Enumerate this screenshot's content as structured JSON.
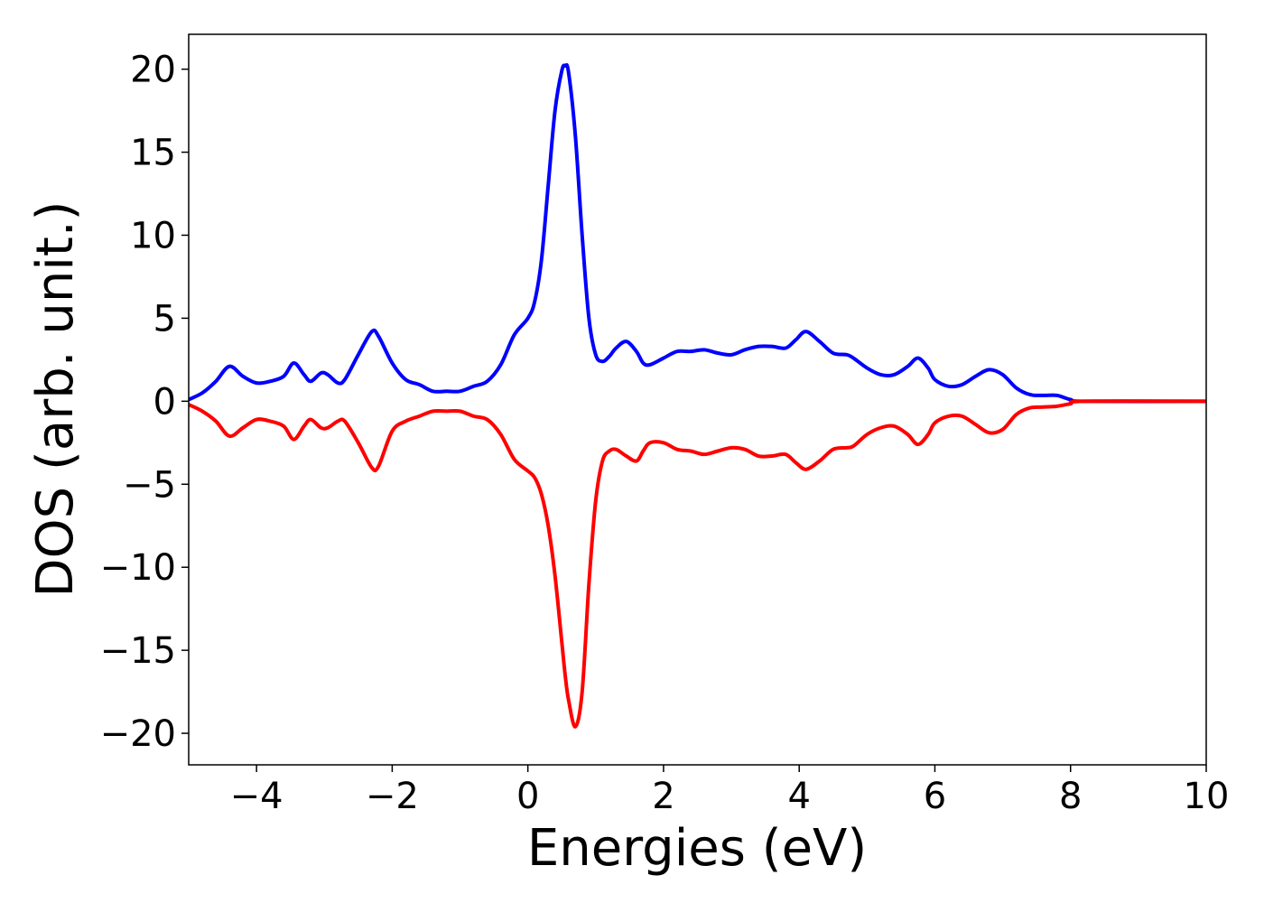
{
  "chart_data": {
    "type": "line",
    "x_label": "Energies (eV)",
    "y_label": "DOS (arb. unit.)",
    "x": [
      -5,
      -4.8,
      -4.6,
      -4.4,
      -4.2,
      -4.0,
      -3.8,
      -3.6,
      -3.45,
      -3.3,
      -3.2,
      -3.05,
      -2.95,
      -2.8,
      -2.7,
      -2.5,
      -2.3,
      -2.2,
      -2.0,
      -1.8,
      -1.6,
      -1.4,
      -1.2,
      -1.0,
      -0.8,
      -0.6,
      -0.4,
      -0.2,
      0,
      0.1,
      0.2,
      0.3,
      0.4,
      0.5,
      0.55,
      0.6,
      0.7,
      0.8,
      0.9,
      1.0,
      1.1,
      1.2,
      1.3,
      1.45,
      1.6,
      1.7,
      1.8,
      2.0,
      2.2,
      2.4,
      2.6,
      2.8,
      3.0,
      3.2,
      3.4,
      3.6,
      3.8,
      3.95,
      4.1,
      4.3,
      4.5,
      4.7,
      4.8,
      5.0,
      5.2,
      5.4,
      5.6,
      5.75,
      5.9,
      6.0,
      6.2,
      6.4,
      6.6,
      6.8,
      7.0,
      7.2,
      7.4,
      7.6,
      7.8,
      8.0,
      8.2,
      10
    ],
    "series": [
      {
        "color": "#0000ff",
        "values": [
          0.1,
          0.5,
          1.2,
          2.1,
          1.5,
          1.1,
          1.2,
          1.5,
          2.3,
          1.6,
          1.2,
          1.7,
          1.6,
          1.1,
          1.3,
          2.8,
          4.2,
          3.9,
          2.3,
          1.3,
          1.0,
          0.6,
          0.6,
          0.6,
          0.9,
          1.2,
          2.2,
          4.0,
          5.0,
          6.0,
          8.5,
          13,
          17.5,
          19.9,
          20.2,
          19.8,
          16,
          10,
          5,
          2.8,
          2.4,
          2.7,
          3.2,
          3.6,
          3.0,
          2.3,
          2.2,
          2.6,
          3.0,
          3.0,
          3.1,
          2.9,
          2.8,
          3.1,
          3.3,
          3.3,
          3.2,
          3.7,
          4.2,
          3.6,
          2.9,
          2.8,
          2.6,
          2.0,
          1.6,
          1.6,
          2.1,
          2.6,
          2.0,
          1.3,
          0.9,
          1.0,
          1.5,
          1.9,
          1.6,
          0.8,
          0.4,
          0.35,
          0.35,
          0.1,
          0,
          0
        ]
      },
      {
        "color": "#ff0000",
        "values": [
          -0.2,
          -0.6,
          -1.2,
          -2.1,
          -1.6,
          -1.1,
          -1.2,
          -1.5,
          -2.3,
          -1.5,
          -1.1,
          -1.6,
          -1.6,
          -1.2,
          -1.2,
          -2.5,
          -4.0,
          -3.9,
          -1.8,
          -1.2,
          -0.9,
          -0.6,
          -0.6,
          -0.6,
          -0.9,
          -1.1,
          -2.0,
          -3.5,
          -4.2,
          -4.6,
          -5.6,
          -7.5,
          -10.5,
          -14.5,
          -16.5,
          -18,
          -19.6,
          -17.5,
          -11,
          -6,
          -3.6,
          -3.0,
          -2.9,
          -3.3,
          -3.6,
          -3.0,
          -2.5,
          -2.5,
          -2.9,
          -3.0,
          -3.2,
          -3.0,
          -2.8,
          -2.9,
          -3.3,
          -3.3,
          -3.2,
          -3.7,
          -4.1,
          -3.6,
          -2.9,
          -2.8,
          -2.7,
          -2.0,
          -1.6,
          -1.5,
          -2.0,
          -2.6,
          -2.0,
          -1.3,
          -0.9,
          -0.9,
          -1.4,
          -1.9,
          -1.7,
          -0.8,
          -0.4,
          -0.35,
          -0.3,
          -0.15,
          0,
          0
        ]
      }
    ],
    "xlim": [
      -5,
      10
    ],
    "ylim": [
      -21.9,
      22.1
    ],
    "xticks": [
      {
        "value": -4,
        "label": "−4"
      },
      {
        "value": -2,
        "label": "−2"
      },
      0,
      2,
      4,
      6,
      8,
      10
    ],
    "yticks": [
      {
        "value": -20,
        "label": "−20"
      },
      {
        "value": -15,
        "label": "−15"
      },
      {
        "value": -10,
        "label": "−10"
      },
      {
        "value": -5,
        "label": "−5"
      },
      0,
      5,
      10,
      15,
      20
    ],
    "grid": false
  }
}
